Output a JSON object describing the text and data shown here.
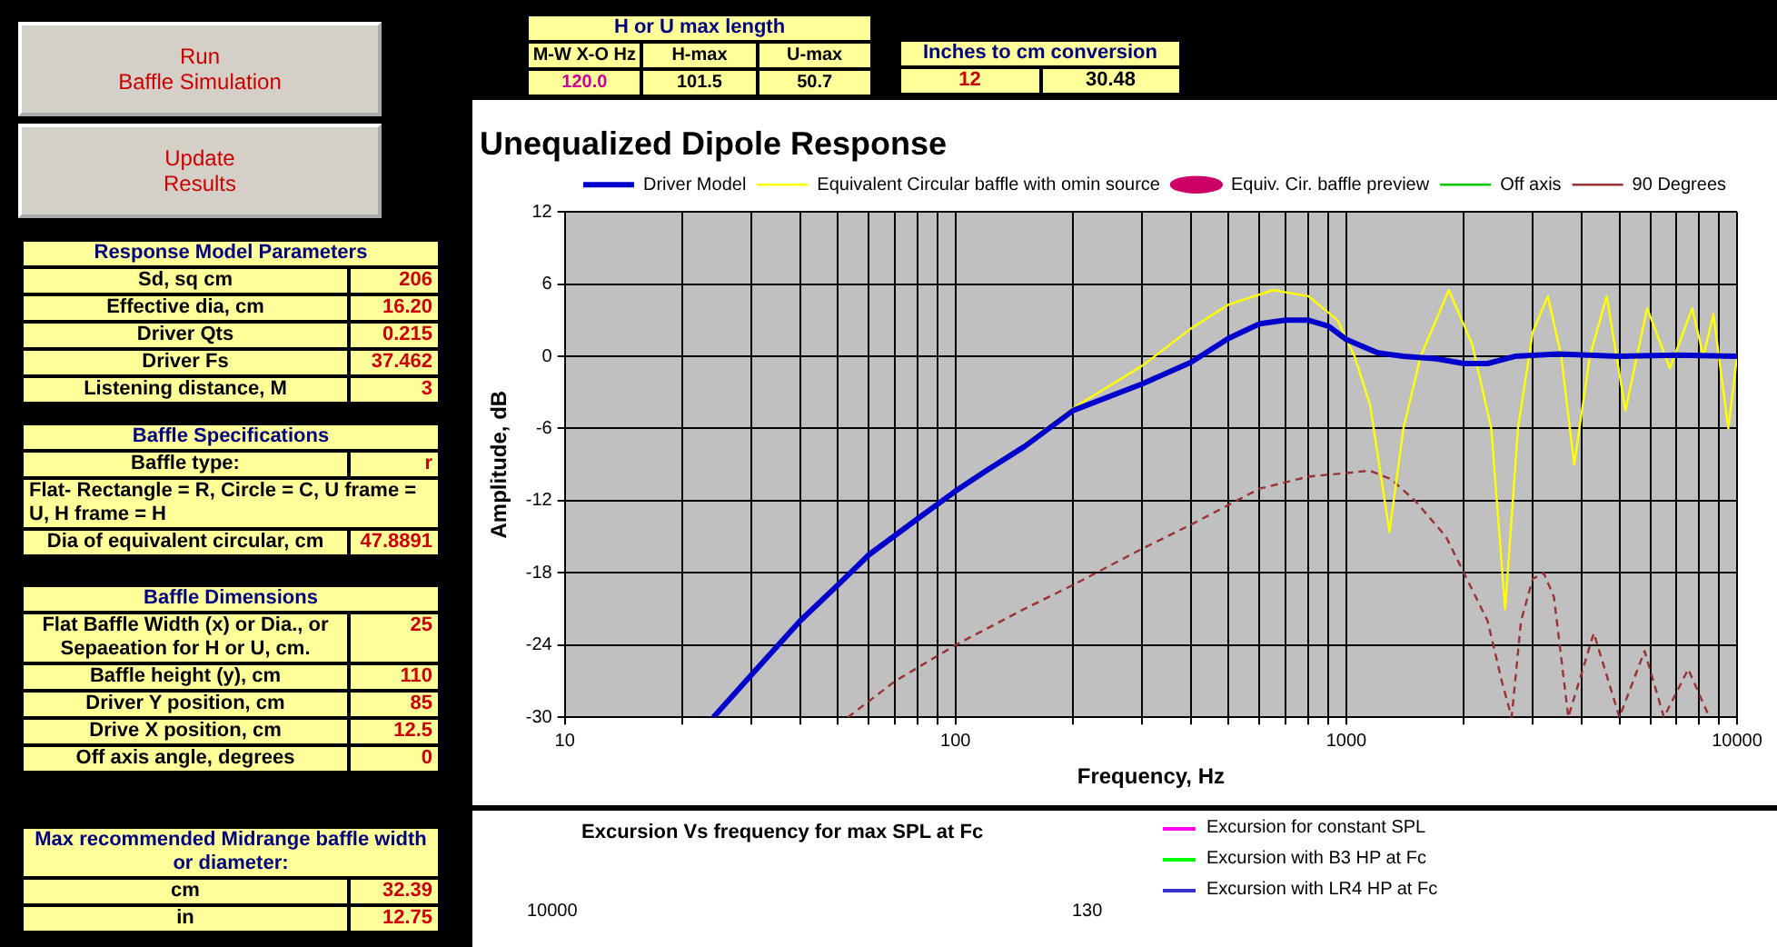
{
  "chart_data": [
    {
      "type": "other",
      "annotations": [
        "Run\nBaffle Simulation",
        "Update\nResults"
      ]
    },
    {
      "type": "other",
      "title": "Response Model Parameters",
      "annotations": [
        "Sd, sq cm",
        "206",
        "Effective dia, cm",
        "16.20",
        "Driver Qts",
        "0.215",
        "Driver Fs",
        "37.462",
        "Listening distance, M",
        "3"
      ]
    },
    {
      "type": "other",
      "title": "Baffle Specifications",
      "subtitle": "Flat- Rectangle = R, Circle = C, U frame = U, H frame = H",
      "annotations": [
        "Baffle type:",
        "r",
        "Dia of equivalent circular, cm",
        "47.8891"
      ]
    },
    {
      "type": "other",
      "title": "Baffle Dimensions",
      "annotations": [
        "Flat Baffle Width (x) or Dia., or Sepaeation for H or U, cm.",
        "25",
        "Baffle height (y), cm",
        "110",
        "Driver Y position, cm",
        "85",
        "Drive X position, cm",
        "12.5",
        "Off axis angle, degrees",
        "0"
      ]
    },
    {
      "type": "other",
      "title": "Max recommended Midrange baffle width or diameter:",
      "annotations": [
        "cm",
        "32.39",
        "in",
        "12.75"
      ]
    },
    {
      "type": "other",
      "title": "H or U max length",
      "annotations": [
        "M-W  X-O Hz",
        "H-max",
        "U-max",
        "120.0",
        "101.5",
        "50.7"
      ]
    },
    {
      "type": "other",
      "title": "Inches to cm conversion",
      "annotations": [
        "12",
        "30.48"
      ]
    },
    {
      "type": "line",
      "title": "Unequalized Dipole Response",
      "xlabel": "Frequency, Hz",
      "ylabel": "Amplitude, dB",
      "log": "x",
      "grid": true,
      "legend": "top right",
      "xlim": [
        10,
        10000
      ],
      "xticks": [
        10,
        {
          "value": 20,
          "label": null
        },
        {
          "value": 30,
          "label": null
        },
        {
          "value": 40,
          "label": null
        },
        {
          "value": 50,
          "label": null
        },
        {
          "value": 60,
          "label": null
        },
        {
          "value": 70,
          "label": null
        },
        {
          "value": 80,
          "label": null
        },
        {
          "value": 90,
          "label": null
        },
        100,
        {
          "value": 200,
          "label": null
        },
        {
          "value": 300,
          "label": null
        },
        {
          "value": 400,
          "label": null
        },
        {
          "value": 500,
          "label": null
        },
        {
          "value": 600,
          "label": null
        },
        {
          "value": 700,
          "label": null
        },
        {
          "value": 800,
          "label": null
        },
        {
          "value": 900,
          "label": null
        },
        1000,
        {
          "value": 2000,
          "label": null
        },
        {
          "value": 3000,
          "label": null
        },
        {
          "value": 4000,
          "label": null
        },
        {
          "value": 5000,
          "label": null
        },
        {
          "value": 6000,
          "label": null
        },
        {
          "value": 7000,
          "label": null
        },
        {
          "value": 8000,
          "label": null
        },
        {
          "value": 9000,
          "label": null
        },
        10000
      ],
      "ylim": [
        -30,
        12
      ],
      "yticks": [
        -30,
        -24,
        -18,
        -12,
        -6,
        0,
        6,
        12
      ],
      "series": [
        {
          "name": "Driver Model",
          "color": "#0000cc",
          "x": [
            24,
            30,
            40,
            50,
            60,
            80,
            100,
            120,
            150,
            200,
            300,
            400,
            500,
            600,
            700,
            800,
            900,
            1000,
            1200,
            1400,
            1700,
            2000,
            2300,
            2700,
            3500,
            5000,
            7000,
            10000
          ],
          "values": [
            -30,
            -26.5,
            -22,
            -19,
            -16.5,
            -13.5,
            -11.2,
            -9.5,
            -7.5,
            -4.5,
            -2.3,
            -0.5,
            1.5,
            2.7,
            3,
            3,
            2.5,
            1.4,
            0.3,
            0,
            -0.2,
            -0.6,
            -0.6,
            0,
            0.2,
            0,
            0.1,
            0
          ]
        },
        {
          "name": "Equivalent Circular baffle with omin source",
          "color": "#ffff00",
          "x": [
            150,
            200,
            300,
            400,
            500,
            650,
            800,
            950,
            1050,
            1150,
            1290,
            1400,
            1550,
            1830,
            2100,
            2350,
            2550,
            2750,
            3000,
            3280,
            3550,
            3830,
            4200,
            4640,
            5180,
            5890,
            6730,
            7680,
            8200,
            8700,
            9500,
            10000
          ],
          "values": [
            -7.3,
            -4.3,
            -0.8,
            2.3,
            4.3,
            5.5,
            5,
            3,
            0,
            -4,
            -14.6,
            -6,
            0,
            5.5,
            1,
            -6,
            -21,
            -6,
            2,
            5,
            0,
            -9,
            0,
            5,
            -4.5,
            4,
            -1,
            4,
            0,
            3.5,
            -6,
            0
          ]
        },
        {
          "name": "Equiv. Cir. baffle preview",
          "color": "#cc0066",
          "marker": "circle"
        },
        {
          "name": "Off axis",
          "color": "#00cc00",
          "line_style": "dashed"
        },
        {
          "name": "90 Degrees",
          "color": "#993333",
          "line_style": "dashed",
          "x": [
            53,
            70,
            100,
            150,
            200,
            300,
            400,
            600,
            800,
            1000,
            1150,
            1300,
            1500,
            1800,
            2000,
            2300,
            2500,
            2650,
            2800,
            3000,
            3200,
            3400,
            3700,
            4300,
            5000,
            5800,
            6500,
            7500,
            8500
          ],
          "values": [
            -30,
            -27,
            -24,
            -21,
            -19,
            -16,
            -14,
            -11,
            -10,
            -9.7,
            -9.5,
            -10.2,
            -12,
            -15,
            -18,
            -22,
            -27,
            -30,
            -22,
            -18.5,
            -18,
            -20,
            -30,
            -23,
            -30,
            -24.5,
            -30,
            -26,
            -30
          ]
        }
      ]
    },
    {
      "type": "other",
      "title": "Excursion Vs frequency for max SPL at Fc",
      "annotations": [
        "10000",
        "130",
        "Excursion for constant SPL",
        "Excursion with B3 HP at Fc",
        "Excursion with LR4 HP at Fc"
      ]
    }
  ]
}
